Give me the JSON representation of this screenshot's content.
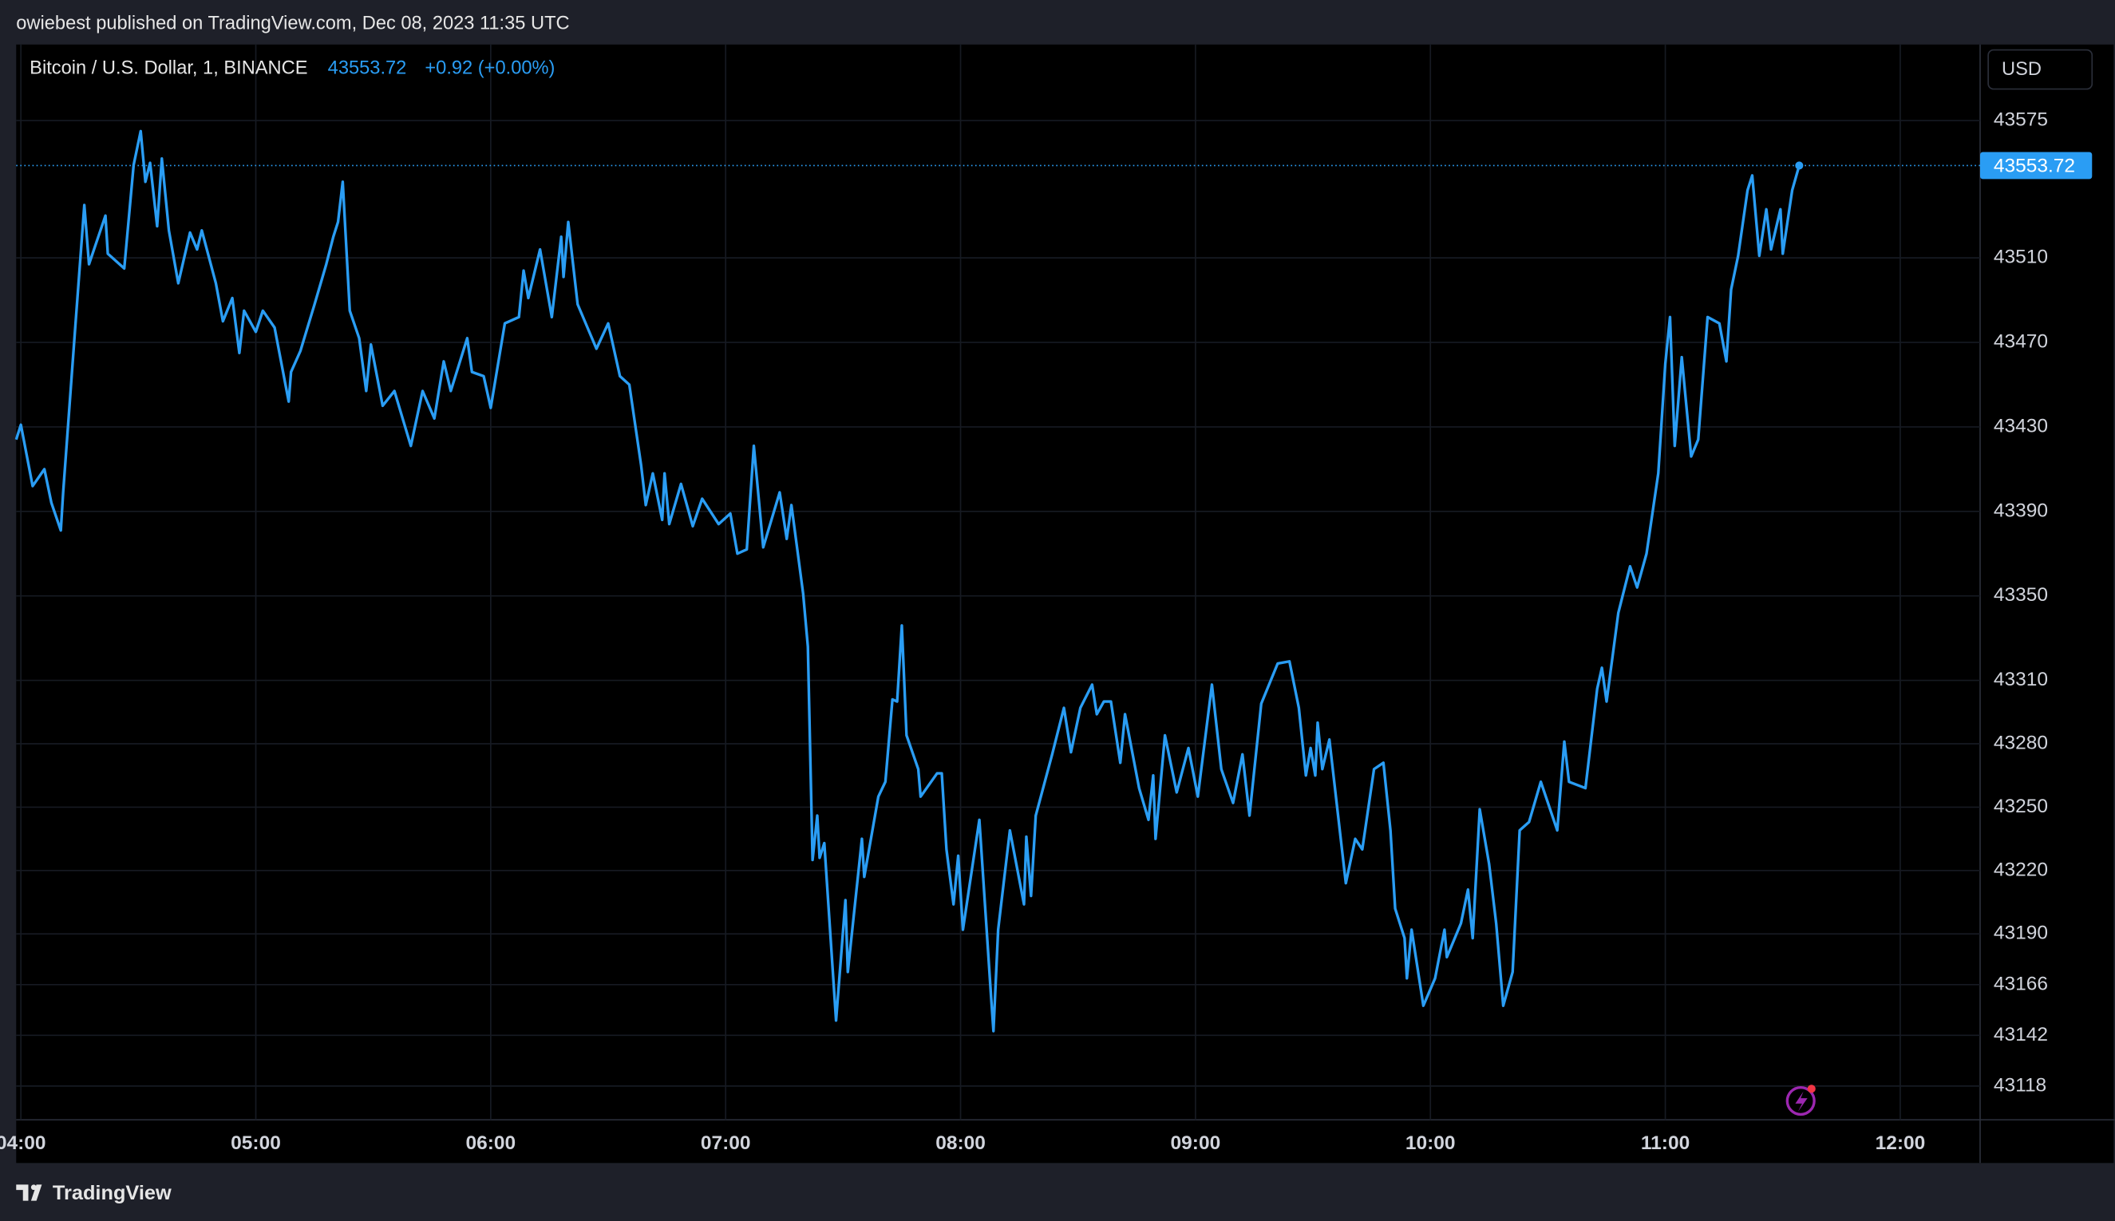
{
  "header": {
    "published": "owiebest published on TradingView.com, Dec 08, 2023 11:35 UTC"
  },
  "footer": {
    "brand": "TradingView"
  },
  "chart_data": {
    "type": "line",
    "title": "Bitcoin / U.S. Dollar, 1, BINANCE",
    "change": "+0.92 (+0.00%)",
    "currency": "USD",
    "color": "#2a9df4",
    "grid": true,
    "xlim": [
      3.98,
      12.34
    ],
    "xticks": [
      {
        "value": 4,
        "label": "04:00"
      },
      {
        "value": 5,
        "label": "05:00"
      },
      {
        "value": 6,
        "label": "06:00"
      },
      {
        "value": 7,
        "label": "07:00"
      },
      {
        "value": 8,
        "label": "08:00"
      },
      {
        "value": 9,
        "label": "09:00"
      },
      {
        "value": 10,
        "label": "10:00"
      },
      {
        "value": 11,
        "label": "11:00"
      },
      {
        "value": 12,
        "label": "12:00"
      }
    ],
    "ylim": [
      43102,
      43611
    ],
    "yticks": [
      43575,
      43510,
      43470,
      43430,
      43390,
      43350,
      43310,
      43280,
      43250,
      43220,
      43190,
      43166,
      43142,
      43118
    ],
    "x": [
      3.98,
      4.0,
      4.05,
      4.1,
      4.13,
      4.17,
      4.18,
      4.23,
      4.27,
      4.29,
      4.36,
      4.37,
      4.44,
      4.48,
      4.51,
      4.53,
      4.55,
      4.58,
      4.6,
      4.63,
      4.67,
      4.72,
      4.75,
      4.77,
      4.83,
      4.86,
      4.9,
      4.93,
      4.95,
      5.0,
      5.03,
      5.08,
      5.14,
      5.15,
      5.19,
      5.25,
      5.3,
      5.33,
      5.35,
      5.37,
      5.4,
      5.44,
      5.47,
      5.49,
      5.54,
      5.59,
      5.66,
      5.71,
      5.76,
      5.8,
      5.83,
      5.9,
      5.92,
      5.97,
      6.0,
      6.06,
      6.12,
      6.14,
      6.16,
      6.21,
      6.26,
      6.3,
      6.31,
      6.33,
      6.37,
      6.45,
      6.5,
      6.55,
      6.59,
      6.64,
      6.66,
      6.69,
      6.73,
      6.74,
      6.76,
      6.81,
      6.86,
      6.9,
      6.97,
      7.02,
      7.05,
      7.09,
      7.12,
      7.16,
      7.23,
      7.26,
      7.28,
      7.33,
      7.35,
      7.37,
      7.39,
      7.4,
      7.42,
      7.47,
      7.51,
      7.52,
      7.58,
      7.59,
      7.65,
      7.68,
      7.71,
      7.73,
      7.75,
      7.77,
      7.82,
      7.83,
      7.9,
      7.92,
      7.94,
      7.97,
      7.99,
      8.01,
      8.08,
      8.13,
      8.14,
      8.16,
      8.21,
      8.27,
      8.28,
      8.3,
      8.32,
      8.39,
      8.44,
      8.47,
      8.51,
      8.56,
      8.58,
      8.61,
      8.64,
      8.68,
      8.7,
      8.76,
      8.8,
      8.82,
      8.83,
      8.87,
      8.92,
      8.97,
      9.01,
      9.07,
      9.11,
      9.16,
      9.2,
      9.23,
      9.28,
      9.35,
      9.4,
      9.44,
      9.47,
      9.49,
      9.51,
      9.52,
      9.54,
      9.57,
      9.64,
      9.68,
      9.71,
      9.76,
      9.8,
      9.83,
      9.85,
      9.89,
      9.9,
      9.92,
      9.97,
      10.02,
      10.06,
      10.07,
      10.13,
      10.16,
      10.18,
      10.21,
      10.25,
      10.28,
      10.31,
      10.35,
      10.38,
      10.42,
      10.47,
      10.54,
      10.57,
      10.59,
      10.66,
      10.71,
      10.73,
      10.75,
      10.8,
      10.85,
      10.88,
      10.92,
      10.97,
      11.0,
      11.02,
      11.04,
      11.07,
      11.11,
      11.14,
      11.18,
      11.23,
      11.26,
      11.28,
      11.31,
      11.35,
      11.37,
      11.4,
      11.43,
      11.45,
      11.49,
      11.5,
      11.54,
      11.57
    ],
    "values": [
      43424,
      43431,
      43402,
      43410,
      43394,
      43381,
      43399,
      43475,
      43535,
      43507,
      43530,
      43512,
      43505,
      43554,
      43570,
      43546,
      43555,
      43525,
      43557,
      43523,
      43498,
      43522,
      43514,
      43523,
      43498,
      43480,
      43491,
      43465,
      43485,
      43475,
      43485,
      43477,
      43442,
      43456,
      43466,
      43488,
      43507,
      43520,
      43527,
      43546,
      43485,
      43472,
      43447,
      43469,
      43440,
      43447,
      43421,
      43447,
      43434,
      43461,
      43447,
      43472,
      43456,
      43454,
      43439,
      43479,
      43482,
      43504,
      43491,
      43514,
      43482,
      43520,
      43501,
      43527,
      43488,
      43467,
      43479,
      43454,
      43450,
      43412,
      43393,
      43408,
      43386,
      43408,
      43384,
      43403,
      43383,
      43396,
      43384,
      43389,
      43370,
      43372,
      43421,
      43373,
      43399,
      43377,
      43393,
      43351,
      43326,
      43225,
      43246,
      43226,
      43233,
      43149,
      43206,
      43172,
      43235,
      43217,
      43255,
      43262,
      43301,
      43300,
      43336,
      43284,
      43268,
      43255,
      43266,
      43266,
      43230,
      43204,
      43227,
      43192,
      43244,
      43160,
      43144,
      43192,
      43239,
      43204,
      43236,
      43208,
      43246,
      43275,
      43297,
      43276,
      43297,
      43308,
      43294,
      43300,
      43300,
      43271,
      43294,
      43259,
      43244,
      43265,
      43235,
      43284,
      43257,
      43278,
      43255,
      43308,
      43268,
      43252,
      43275,
      43246,
      43299,
      43318,
      43319,
      43297,
      43265,
      43278,
      43265,
      43290,
      43268,
      43282,
      43214,
      43235,
      43230,
      43268,
      43271,
      43239,
      43202,
      43188,
      43169,
      43192,
      43156,
      43169,
      43192,
      43179,
      43195,
      43211,
      43188,
      43249,
      43223,
      43195,
      43156,
      43172,
      43239,
      43243,
      43262,
      43239,
      43281,
      43262,
      43259,
      43306,
      43316,
      43300,
      43342,
      43364,
      43354,
      43370,
      43408,
      43460,
      43482,
      43421,
      43463,
      43416,
      43424,
      43482,
      43479,
      43461,
      43495,
      43511,
      43542,
      43549,
      43511,
      43533,
      43514,
      43533,
      43512,
      43542,
      43553.72
    ]
  }
}
